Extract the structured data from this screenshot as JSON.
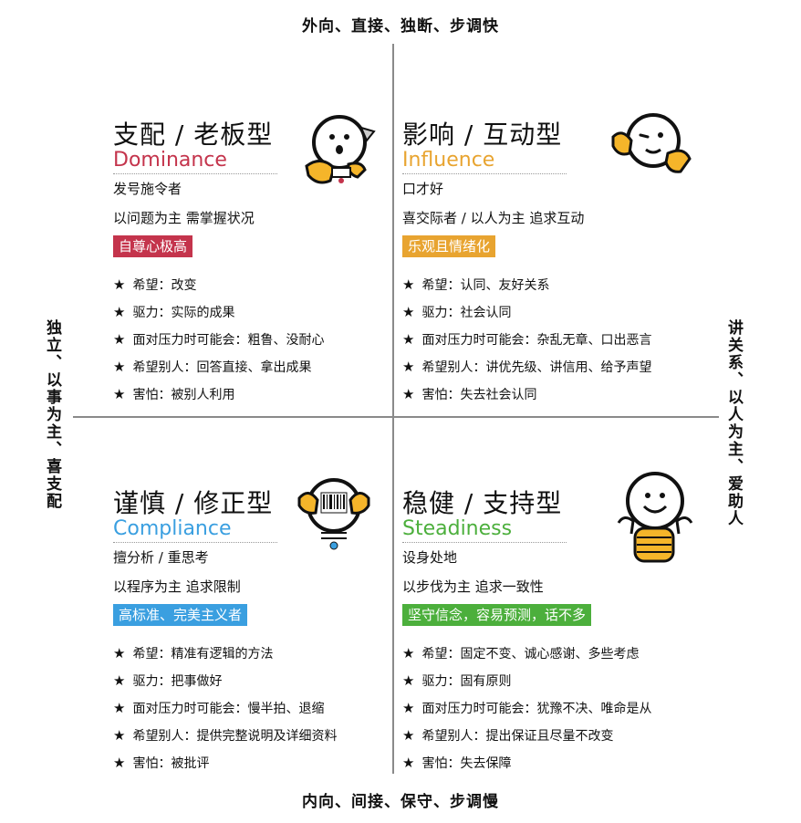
{
  "axes": {
    "top": "外向、直接、独断、步调快",
    "bottom": "内向、间接、保守、步调慢",
    "left": "独立、以事为主、喜支配",
    "right": "讲关系、以人为主、爱助人"
  },
  "colors": {
    "dominance": "#c4344c",
    "influence": "#e8a430",
    "compliance": "#3a9fe0",
    "steadiness": "#4caf3c",
    "face_yellow": "#f5b52a"
  },
  "quadrants": {
    "dominance": {
      "title": "支配 / 老板型",
      "subtitle": "Dominance",
      "line1": "发号施令者",
      "line2": "以问题为主 需掌握状况",
      "badge": "自尊心极高",
      "items": [
        "希望：改变",
        "驱力：实际的成果",
        "面对压力时可能会：粗鲁、没耐心",
        "希望别人：回答直接、拿出成果",
        "害怕：被别人利用"
      ],
      "icon": "surprised-face-icon"
    },
    "influence": {
      "title": "影响 / 互动型",
      "subtitle": "Influence",
      "line1": "口才好",
      "line2": "喜交际者 / 以人为主 追求互动",
      "badge": "乐观且情绪化",
      "items": [
        "希望：认同、友好关系",
        "驱力：社会认同",
        "面对压力时可能会：杂乱无章、口出恶言",
        "希望别人：讲优先级、讲信用、给予声望",
        "害怕：失去社会认同"
      ],
      "icon": "winking-face-icon"
    },
    "compliance": {
      "title": "谨慎 / 修正型",
      "subtitle": "Compliance",
      "line1": "擅分析 / 重思考",
      "line2": "以程序为主 追求限制",
      "badge": "高标准、完美主义者",
      "items": [
        "希望：精准有逻辑的方法",
        "驱力：把事做好",
        "面对压力时可能会：慢半拍、退缩",
        "希望别人：提供完整说明及详细资料",
        "害怕：被批评"
      ],
      "icon": "barcode-face-icon"
    },
    "steadiness": {
      "title": "稳健 / 支持型",
      "subtitle": "Steadiness",
      "line1": "设身处地",
      "line2": "以步伐为主 追求一致性",
      "badge": "坚守信念，容易预测，话不多",
      "items": [
        "希望：固定不变、诚心感谢、多些考虑",
        "驱力：固有原则",
        "面对压力时可能会：犹豫不决、唯命是从",
        "希望别人：提出保证且尽量不改变",
        "害怕：失去保障"
      ],
      "icon": "smiling-face-icon"
    }
  }
}
